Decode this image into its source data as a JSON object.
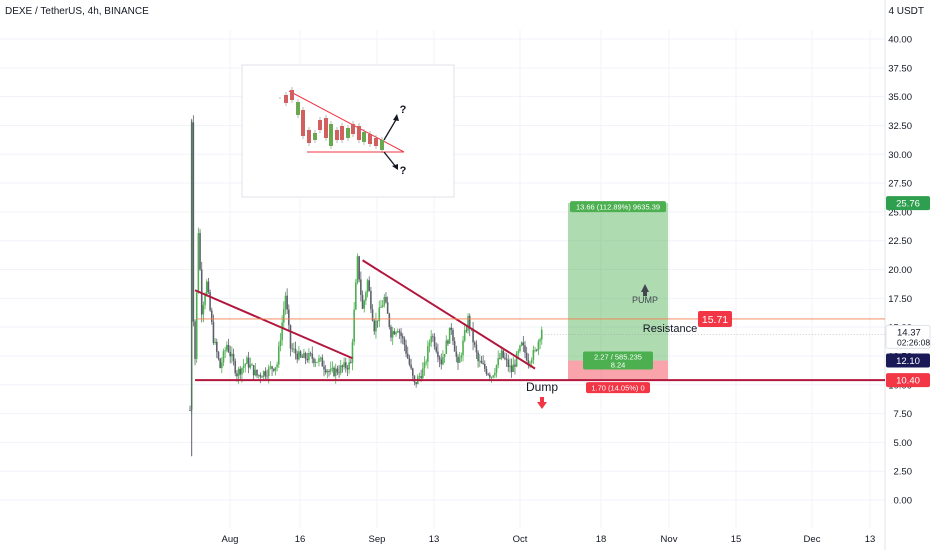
{
  "header": {
    "symbol": "DEXE / TetherUS, 4h, BINANCE",
    "currency": "4 USDT"
  },
  "chart_data": {
    "type": "candlestick",
    "y_axis": {
      "ticks": [
        "40.00",
        "37.50",
        "35.00",
        "32.50",
        "30.00",
        "27.50",
        "25.00",
        "22.50",
        "20.00",
        "17.50",
        "15.00",
        "12.50",
        "10.00",
        "7.50",
        "5.00",
        "2.50",
        "0.00"
      ],
      "ylim": [
        -1.5,
        43.5
      ]
    },
    "x_axis": {
      "ticks": [
        "Aug",
        "16",
        "Sep",
        "13",
        "Oct",
        "18",
        "Nov",
        "15",
        "Dec",
        "13"
      ]
    },
    "price_path": [
      [
        0,
        7.8
      ],
      [
        0.2,
        4.0
      ],
      [
        0.5,
        33.0
      ],
      [
        1.2,
        9.0
      ],
      [
        2.5,
        23.4
      ],
      [
        3.5,
        16.5
      ],
      [
        5,
        18.8
      ],
      [
        7,
        14.0
      ],
      [
        9,
        11.5
      ],
      [
        11,
        13.5
      ],
      [
        14,
        11.0
      ],
      [
        17,
        12.0
      ],
      [
        20,
        10.8
      ],
      [
        23,
        11.2
      ],
      [
        26,
        11.8
      ],
      [
        28.5,
        17.8
      ],
      [
        30,
        13.2
      ],
      [
        33,
        12.3
      ],
      [
        36,
        12.4
      ],
      [
        39,
        12.0
      ],
      [
        42,
        11.0
      ],
      [
        45,
        11.4
      ],
      [
        48,
        11.8
      ],
      [
        50,
        20.8
      ],
      [
        51.5,
        16.5
      ],
      [
        53,
        19.0
      ],
      [
        55,
        15.0
      ],
      [
        58,
        17.5
      ],
      [
        60,
        14.5
      ],
      [
        62,
        15.0
      ],
      [
        64,
        13.5
      ],
      [
        67,
        10.0
      ],
      [
        70,
        11.5
      ],
      [
        72,
        14.5
      ],
      [
        75,
        12.0
      ],
      [
        78,
        15.0
      ],
      [
        80,
        11.5
      ],
      [
        83,
        15.7
      ],
      [
        86,
        12.0
      ],
      [
        90,
        10.8
      ],
      [
        93,
        12.6
      ],
      [
        96,
        11.2
      ],
      [
        99,
        13.4
      ],
      [
        101,
        12.2
      ],
      [
        103,
        12.8
      ],
      [
        105,
        14.9
      ]
    ],
    "candle_range": {
      "x_start": 0,
      "x_end": 105
    },
    "trendlines": [
      {
        "label": "",
        "from": [
          1.5,
          18.2
        ],
        "to": [
          48.5,
          12.3
        ],
        "color": "#b2163c"
      },
      {
        "label": "",
        "from": [
          51.5,
          20.8
        ],
        "to": [
          103,
          11.4
        ],
        "color": "#b2163c"
      },
      {
        "label": "",
        "from": [
          1.5,
          10.4
        ],
        "to": [
          180,
          10.4
        ],
        "color": "#b2163c"
      }
    ],
    "resistance": {
      "label": "Resistance",
      "value": 15.71
    },
    "labels": {
      "pump": "PUMP",
      "dump": "Dump"
    },
    "position": {
      "entry": 12.1,
      "target": 25.76,
      "stop": 10.4,
      "target_text": "13.66 (112.89%) 9635.39",
      "stop_text": "1.70 (14.05%) 0",
      "mid_text_1": "2.27 / 585.235",
      "mid_text_2": "8.24"
    },
    "price_tags": [
      {
        "value": "25.76",
        "color": "#2e9e4f",
        "price": 25.76
      },
      {
        "value": "12.10",
        "color": "#1a1a57",
        "price": 12.1
      },
      {
        "value": "10.40",
        "color": "#f23645",
        "price": 10.4
      }
    ],
    "current": {
      "value": "14.37",
      "countdown": "02:26:08",
      "price": 14.37
    },
    "inset": {
      "question_up": "?",
      "question_down": "?"
    }
  },
  "colors": {
    "trend": "#b2163c",
    "green": "#4caf50",
    "red": "#f23645",
    "candle_down": "#5d606b",
    "grid": "#f0f3fa"
  }
}
